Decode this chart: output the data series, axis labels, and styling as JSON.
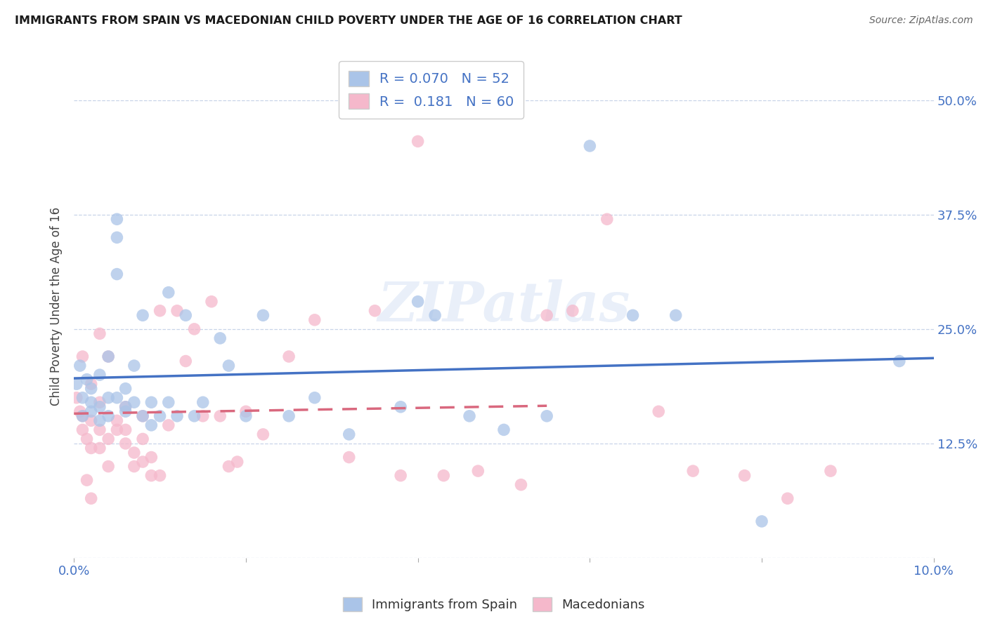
{
  "title": "IMMIGRANTS FROM SPAIN VS MACEDONIAN CHILD POVERTY UNDER THE AGE OF 16 CORRELATION CHART",
  "source": "Source: ZipAtlas.com",
  "ylabel": "Child Poverty Under the Age of 16",
  "xlim": [
    0.0,
    0.1
  ],
  "ylim": [
    0.0,
    0.55
  ],
  "xticks": [
    0.0,
    0.02,
    0.04,
    0.06,
    0.08,
    0.1
  ],
  "xticklabels": [
    "0.0%",
    "",
    "",
    "",
    "",
    "10.0%"
  ],
  "yticks": [
    0.0,
    0.125,
    0.25,
    0.375,
    0.5
  ],
  "yticklabels_right": [
    "",
    "12.5%",
    "25.0%",
    "37.5%",
    "50.0%"
  ],
  "legend_blue_r": "0.070",
  "legend_blue_n": "52",
  "legend_pink_r": "0.181",
  "legend_pink_n": "60",
  "blue_color": "#aac4e8",
  "pink_color": "#f5b8cb",
  "blue_line_color": "#4472c4",
  "pink_line_color": "#d9687e",
  "background_color": "#ffffff",
  "grid_color": "#c8d4e8",
  "watermark": "ZIPatlas",
  "blue_scatter_x": [
    0.0003,
    0.0007,
    0.001,
    0.001,
    0.0015,
    0.002,
    0.002,
    0.002,
    0.003,
    0.003,
    0.003,
    0.004,
    0.004,
    0.004,
    0.005,
    0.005,
    0.005,
    0.005,
    0.006,
    0.006,
    0.006,
    0.007,
    0.007,
    0.008,
    0.008,
    0.009,
    0.009,
    0.01,
    0.011,
    0.011,
    0.012,
    0.013,
    0.014,
    0.015,
    0.017,
    0.018,
    0.02,
    0.022,
    0.025,
    0.028,
    0.032,
    0.038,
    0.04,
    0.042,
    0.046,
    0.05,
    0.055,
    0.06,
    0.065,
    0.07,
    0.08,
    0.096
  ],
  "blue_scatter_y": [
    0.19,
    0.21,
    0.175,
    0.155,
    0.195,
    0.185,
    0.16,
    0.17,
    0.2,
    0.165,
    0.15,
    0.155,
    0.175,
    0.22,
    0.35,
    0.37,
    0.31,
    0.175,
    0.165,
    0.185,
    0.16,
    0.21,
    0.17,
    0.265,
    0.155,
    0.17,
    0.145,
    0.155,
    0.29,
    0.17,
    0.155,
    0.265,
    0.155,
    0.17,
    0.24,
    0.21,
    0.155,
    0.265,
    0.155,
    0.175,
    0.135,
    0.165,
    0.28,
    0.265,
    0.155,
    0.14,
    0.155,
    0.45,
    0.265,
    0.265,
    0.04,
    0.215
  ],
  "pink_scatter_x": [
    0.0003,
    0.0007,
    0.001,
    0.001,
    0.0015,
    0.002,
    0.002,
    0.002,
    0.003,
    0.003,
    0.003,
    0.004,
    0.004,
    0.004,
    0.005,
    0.005,
    0.006,
    0.006,
    0.006,
    0.007,
    0.007,
    0.008,
    0.008,
    0.008,
    0.009,
    0.009,
    0.01,
    0.01,
    0.011,
    0.012,
    0.013,
    0.014,
    0.015,
    0.016,
    0.017,
    0.018,
    0.019,
    0.02,
    0.022,
    0.025,
    0.028,
    0.032,
    0.035,
    0.038,
    0.04,
    0.043,
    0.047,
    0.052,
    0.055,
    0.058,
    0.062,
    0.068,
    0.072,
    0.078,
    0.083,
    0.088,
    0.001,
    0.0015,
    0.002,
    0.003
  ],
  "pink_scatter_y": [
    0.175,
    0.16,
    0.14,
    0.155,
    0.13,
    0.19,
    0.12,
    0.15,
    0.14,
    0.12,
    0.17,
    0.1,
    0.13,
    0.22,
    0.15,
    0.14,
    0.125,
    0.165,
    0.14,
    0.1,
    0.115,
    0.105,
    0.13,
    0.155,
    0.09,
    0.11,
    0.09,
    0.27,
    0.145,
    0.27,
    0.215,
    0.25,
    0.155,
    0.28,
    0.155,
    0.1,
    0.105,
    0.16,
    0.135,
    0.22,
    0.26,
    0.11,
    0.27,
    0.09,
    0.455,
    0.09,
    0.095,
    0.08,
    0.265,
    0.27,
    0.37,
    0.16,
    0.095,
    0.09,
    0.065,
    0.095,
    0.22,
    0.085,
    0.065,
    0.245
  ]
}
